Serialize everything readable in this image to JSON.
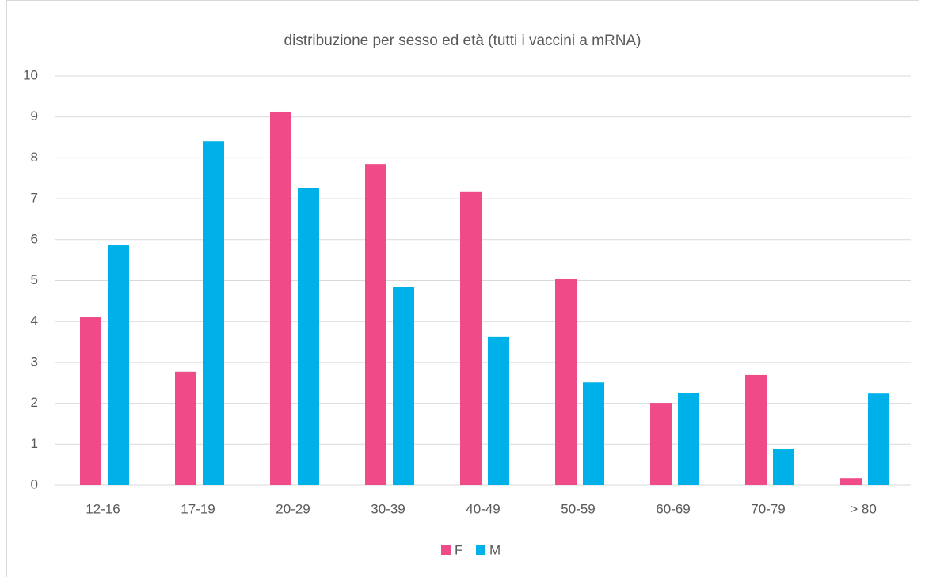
{
  "chart_data": {
    "type": "bar",
    "title": "distribuzione per sesso ed età (tutti i vaccini a mRNA)",
    "categories": [
      "12-16",
      "17-19",
      "20-29",
      "30-39",
      "40-49",
      "50-59",
      "60-69",
      "70-79",
      "> 80"
    ],
    "series": [
      {
        "name": "F",
        "color": "#f04b89",
        "values": [
          4.1,
          2.77,
          9.13,
          7.85,
          7.18,
          5.03,
          2.01,
          2.69,
          0.17
        ]
      },
      {
        "name": "M",
        "color": "#00b0e8",
        "values": [
          5.86,
          8.41,
          7.27,
          4.85,
          3.62,
          2.51,
          2.26,
          0.89,
          2.24
        ]
      }
    ],
    "ylim": [
      0,
      10
    ],
    "yticks": [
      0,
      1,
      2,
      3,
      4,
      5,
      6,
      7,
      8,
      9,
      10
    ],
    "grid": true,
    "legend": "bottom"
  }
}
